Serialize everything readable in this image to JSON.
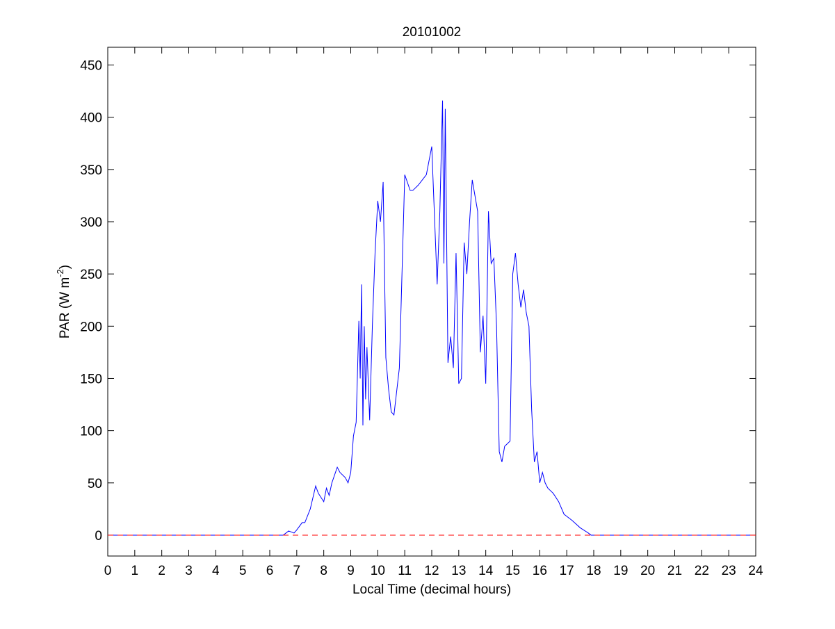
{
  "chart_data": {
    "type": "line",
    "title": "20101002",
    "x_label": "Local Time (decimal hours)",
    "y_label": [
      "PAR (W m",
      "-2",
      ")"
    ],
    "xlim": [
      0,
      24
    ],
    "ylim": [
      -20,
      467
    ],
    "xticks": [
      0,
      1,
      2,
      3,
      4,
      5,
      6,
      7,
      8,
      9,
      10,
      11,
      12,
      13,
      14,
      15,
      16,
      17,
      18,
      19,
      20,
      21,
      22,
      23,
      24
    ],
    "yticks": [
      0,
      50,
      100,
      150,
      200,
      250,
      300,
      350,
      400,
      450
    ],
    "series": [
      {
        "color": "#0000ff",
        "linestyle": "solid",
        "x": [
          0,
          6.5,
          6.7,
          6.9,
          7.0,
          7.2,
          7.3,
          7.5,
          7.7,
          7.8,
          8.0,
          8.1,
          8.2,
          8.3,
          8.5,
          8.6,
          8.8,
          8.9,
          9.0,
          9.1,
          9.2,
          9.3,
          9.35,
          9.4,
          9.45,
          9.5,
          9.55,
          9.6,
          9.7,
          9.8,
          9.9,
          10.0,
          10.1,
          10.2,
          10.3,
          10.4,
          10.5,
          10.6,
          10.8,
          11.0,
          11.2,
          11.3,
          11.5,
          11.8,
          12.0,
          12.2,
          12.3,
          12.4,
          12.45,
          12.5,
          12.6,
          12.7,
          12.8,
          12.9,
          13.0,
          13.1,
          13.2,
          13.3,
          13.4,
          13.5,
          13.7,
          13.8,
          13.9,
          14.0,
          14.1,
          14.2,
          14.3,
          14.4,
          14.5,
          14.6,
          14.7,
          14.9,
          15.0,
          15.1,
          15.2,
          15.3,
          15.4,
          15.5,
          15.6,
          15.7,
          15.8,
          15.9,
          16.0,
          16.1,
          16.2,
          16.3,
          16.5,
          16.7,
          16.9,
          17.0,
          17.2,
          17.5,
          17.8,
          17.9,
          18.0,
          24
        ],
        "values": [
          0,
          0,
          4,
          2,
          5,
          12,
          12,
          25,
          47,
          40,
          32,
          45,
          38,
          50,
          65,
          60,
          55,
          50,
          60,
          95,
          108,
          205,
          150,
          240,
          105,
          200,
          130,
          180,
          110,
          200,
          270,
          320,
          300,
          338,
          170,
          140,
          118,
          115,
          160,
          345,
          330,
          330,
          335,
          345,
          372,
          240,
          310,
          416,
          260,
          408,
          165,
          190,
          160,
          270,
          145,
          150,
          280,
          250,
          300,
          340,
          310,
          175,
          210,
          145,
          310,
          260,
          265,
          200,
          80,
          70,
          85,
          90,
          250,
          270,
          240,
          218,
          235,
          213,
          200,
          120,
          70,
          80,
          50,
          60,
          50,
          45,
          40,
          32,
          20,
          18,
          14,
          7,
          2,
          0,
          0,
          0
        ]
      },
      {
        "color": "#ff0000",
        "linestyle": "dashed",
        "x": [
          0,
          24
        ],
        "values": [
          0,
          0
        ]
      }
    ]
  }
}
